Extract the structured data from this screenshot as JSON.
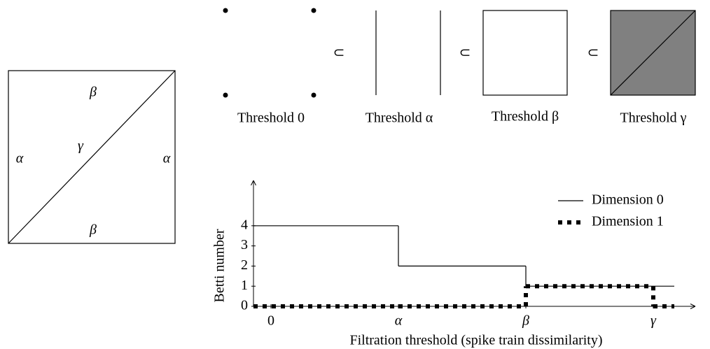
{
  "diagram": {
    "square_labels": {
      "top": "β",
      "bottom": "β",
      "left": "α",
      "right": "α",
      "diagonal": "γ"
    },
    "complexes": [
      "Threshold 0",
      "Threshold α",
      "Threshold β",
      "Threshold γ"
    ],
    "subset_symbols": [
      "⊂",
      "⊂",
      "⊂"
    ]
  },
  "chart_data": {
    "type": "line",
    "step": "post",
    "categories": [
      "0",
      "α",
      "β",
      "γ"
    ],
    "series": [
      {
        "name": "Dimension 0",
        "color": "#000000",
        "style": "solid",
        "values": [
          4,
          2,
          1,
          1
        ]
      },
      {
        "name": "Dimension 1",
        "color": "#000000",
        "style": "dotted",
        "values": [
          0,
          0,
          1,
          0
        ]
      }
    ],
    "ylim": [
      0,
      6.25
    ],
    "yticks": [
      0,
      1,
      2,
      3,
      4
    ],
    "xlabel": "Filtration threshold (spike train dissimilarity)",
    "ylabel": "Betti number",
    "legend": "upper right"
  }
}
